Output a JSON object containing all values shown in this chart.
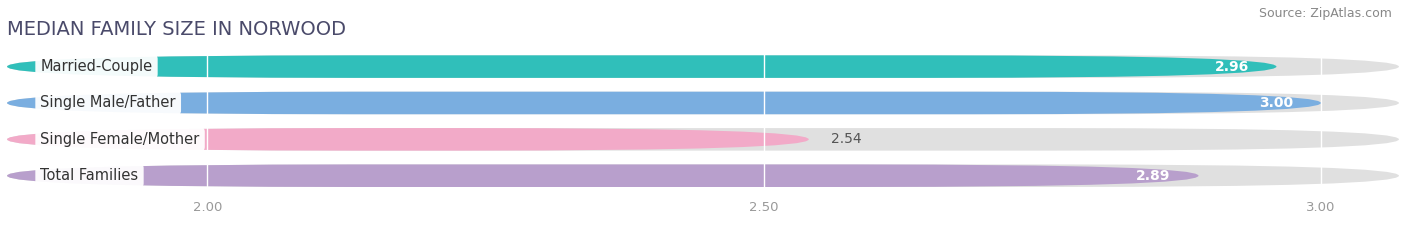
{
  "title": "MEDIAN FAMILY SIZE IN NORWOOD",
  "source": "Source: ZipAtlas.com",
  "categories": [
    "Married-Couple",
    "Single Male/Father",
    "Single Female/Mother",
    "Total Families"
  ],
  "values": [
    2.96,
    3.0,
    2.54,
    2.89
  ],
  "bar_colors": [
    "#30bfba",
    "#7aaee0",
    "#f2aac8",
    "#b89fcc"
  ],
  "xmin": 1.82,
  "xmax": 3.07,
  "xticks": [
    2.0,
    2.5,
    3.0
  ],
  "bar_height": 0.62,
  "background_color": "#ffffff",
  "row_bg_color": "#eeeeee",
  "title_fontsize": 14,
  "label_fontsize": 10.5,
  "value_fontsize": 10,
  "source_fontsize": 9,
  "title_color": "#4a4a6a",
  "source_color": "#888888",
  "tick_color": "#999999"
}
